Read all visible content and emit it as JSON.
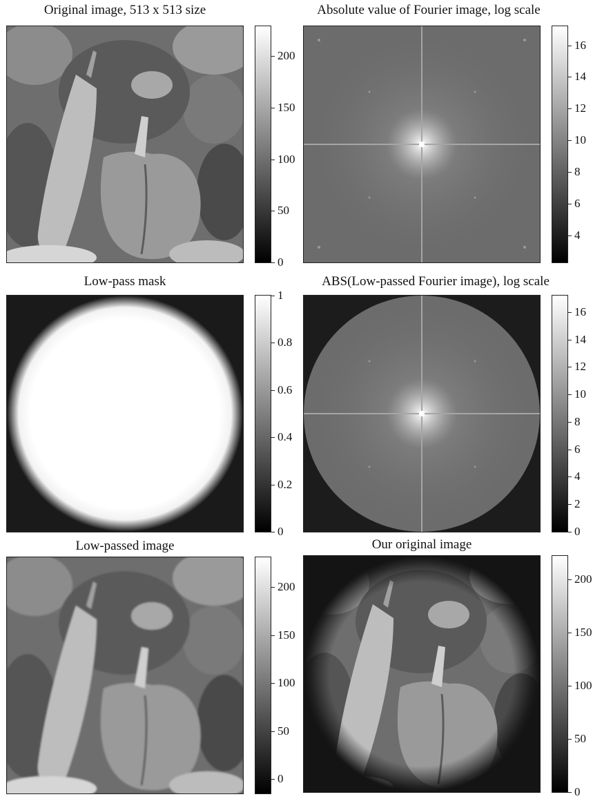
{
  "figure": {
    "panels": [
      {
        "title": "Original image, 513 x 513 size",
        "content": "pepper-photo",
        "colorbar": {
          "min": 0,
          "max": 229,
          "ticks": [
            "0",
            "50",
            "100",
            "150",
            "200"
          ],
          "tick_values": [
            0,
            50,
            100,
            150,
            200
          ]
        }
      },
      {
        "title": "Absolute value of Fourier image, log scale",
        "content": "fourier-spectrum",
        "colorbar": {
          "min": 2.3,
          "max": 17.2,
          "ticks": [
            "4",
            "6",
            "8",
            "10",
            "12",
            "14",
            "16"
          ],
          "tick_values": [
            4,
            6,
            8,
            10,
            12,
            14,
            16
          ]
        }
      },
      {
        "title": "Low-pass mask",
        "content": "circular-mask",
        "colorbar": {
          "min": 0,
          "max": 1,
          "ticks": [
            "0",
            "0.2",
            "0.4",
            "0.6",
            "0.8",
            "1"
          ],
          "tick_values": [
            0,
            0.2,
            0.4,
            0.6,
            0.8,
            1
          ]
        }
      },
      {
        "title": "ABS(Low-passed Fourier image), log scale",
        "content": "masked-fourier-spectrum",
        "colorbar": {
          "min": 0,
          "max": 17.2,
          "ticks": [
            "0",
            "2",
            "4",
            "6",
            "8",
            "10",
            "12",
            "14",
            "16"
          ],
          "tick_values": [
            0,
            2,
            4,
            6,
            8,
            10,
            12,
            14,
            16
          ]
        }
      },
      {
        "title": "Low-passed image",
        "content": "pepper-photo-lowpassed",
        "colorbar": {
          "min": -15,
          "max": 231,
          "ticks": [
            "0",
            "50",
            "100",
            "150",
            "200"
          ],
          "tick_values": [
            0,
            50,
            100,
            150,
            200
          ]
        }
      },
      {
        "title": "Our original image",
        "content": "pepper-photo-vignette",
        "colorbar": {
          "min": 0,
          "max": 222,
          "ticks": [
            "0",
            "50",
            "100",
            "150",
            "200"
          ],
          "tick_values": [
            0,
            50,
            100,
            150,
            200
          ]
        }
      }
    ]
  }
}
